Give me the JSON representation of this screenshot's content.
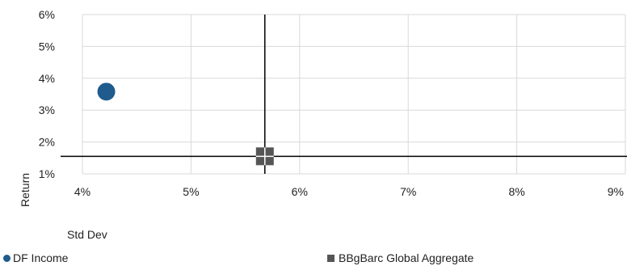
{
  "chart_data": {
    "type": "scatter",
    "xlabel": "Std Dev",
    "ylabel": "Return",
    "xlim": [
      4,
      9
    ],
    "ylim": [
      1,
      6
    ],
    "x_ticks": [
      "4%",
      "5%",
      "6%",
      "7%",
      "8%",
      "9%"
    ],
    "y_ticks": [
      "1%",
      "2%",
      "3%",
      "4%",
      "5%",
      "6%"
    ],
    "grid": true,
    "legend_position": "bottom",
    "reference_lines": {
      "x": 5.68,
      "y": 1.55
    },
    "series": [
      {
        "name": "DF Income",
        "marker": "circle",
        "color": "#1f5b8c",
        "points": [
          {
            "x": 4.22,
            "y": 3.58
          }
        ]
      },
      {
        "name": "BBgBarc Global Aggregate",
        "marker": "square",
        "color": "#555555",
        "points": [
          {
            "x": 5.68,
            "y": 1.55
          }
        ]
      }
    ]
  }
}
